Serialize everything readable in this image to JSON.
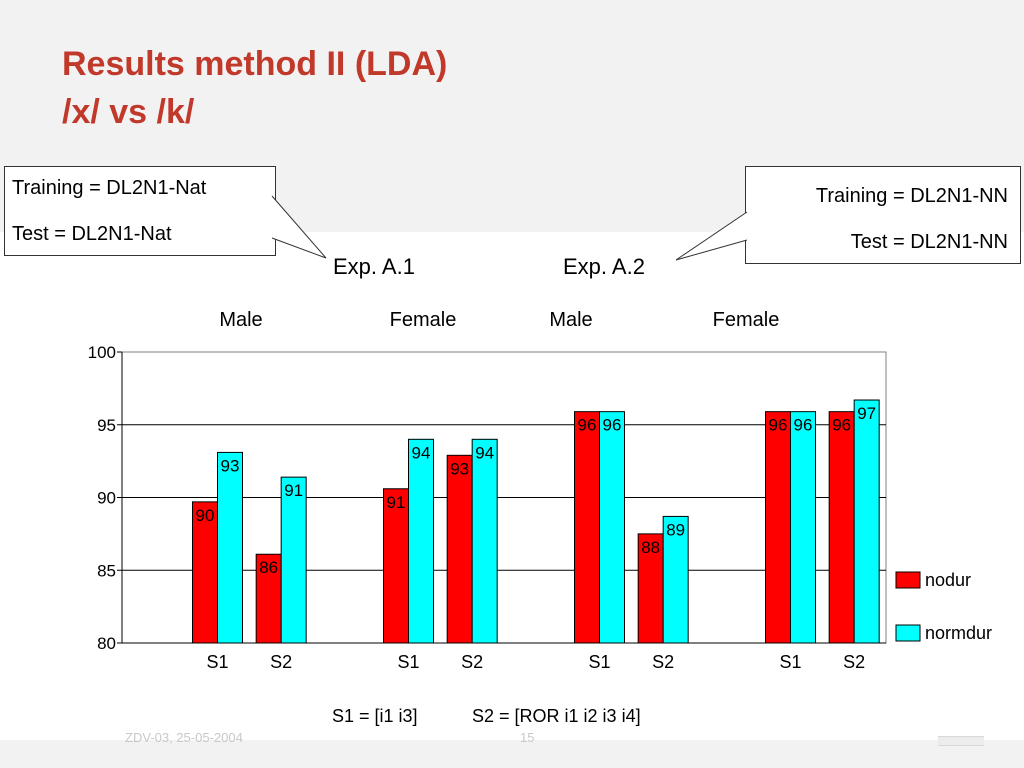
{
  "slide": {
    "title_line1": "Results method II (LDA)",
    "title_line2": "/x/ vs /k/",
    "title_color": "#c0392b",
    "footer_left": "ZDV-03, 25-05-2004",
    "footer_mid": "15"
  },
  "callouts": {
    "left": {
      "line1": "Training = DL2N1-Nat",
      "line2": "Test = DL2N1-Nat"
    },
    "right": {
      "line1": "Training = DL2N1-NN",
      "line2": "Test = DL2N1-NN"
    }
  },
  "experiments": {
    "a1": "Exp. A.1",
    "a2": "Exp. A.2"
  },
  "footnote": {
    "s1": "S1 = [i1 i3]",
    "s2": "S2 = [ROR i1 i2 i3 i4]"
  },
  "chart_data": {
    "type": "bar",
    "groups": [
      "Male",
      "Female",
      "Male",
      "Female"
    ],
    "categories": [
      "S1",
      "S2",
      "S1",
      "S2",
      "S1",
      "S2",
      "S1",
      "S2"
    ],
    "series": [
      {
        "name": "nodur",
        "color": "#ff0000",
        "values": [
          89.7,
          86.1,
          90.6,
          92.9,
          95.9,
          87.5,
          95.9,
          95.9
        ],
        "labels": [
          "90",
          "86",
          "91",
          "93",
          "96",
          "88",
          "96",
          "96"
        ]
      },
      {
        "name": "normdur",
        "color": "#00ffff",
        "values": [
          93.1,
          91.4,
          94.0,
          94.0,
          95.9,
          88.7,
          95.9,
          96.7
        ],
        "labels": [
          "93",
          "91",
          "94",
          "94",
          "96",
          "89",
          "96",
          "97"
        ]
      }
    ],
    "ylim": [
      80,
      100
    ],
    "yticks": [
      80,
      85,
      90,
      95,
      100
    ],
    "grid": true,
    "legend": "right"
  }
}
